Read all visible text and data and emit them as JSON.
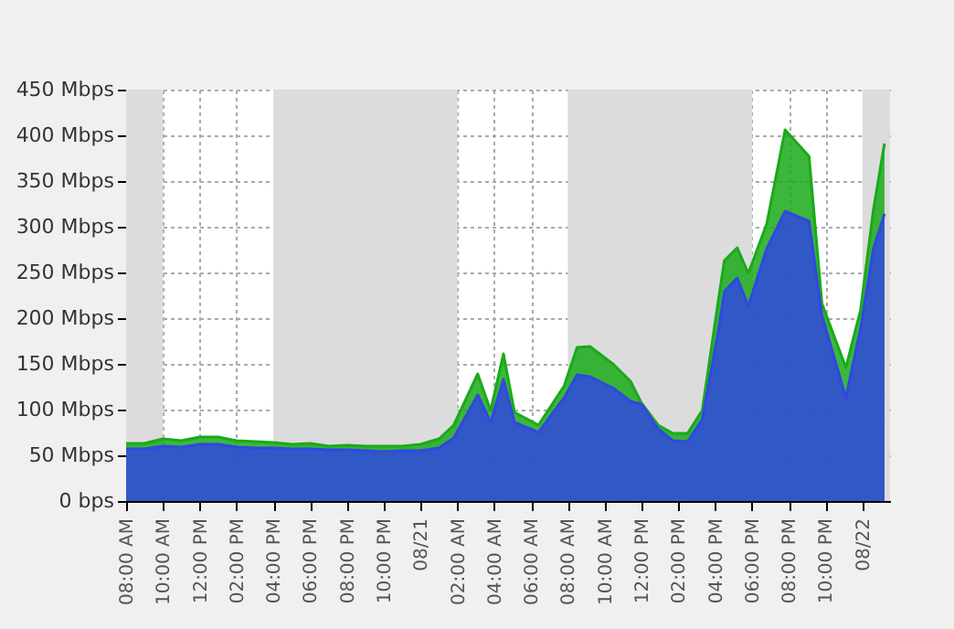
{
  "chart_data": {
    "type": "area",
    "x": [
      "--08-20T08:00",
      "--08-20T09:00",
      "--08-20T10:00",
      "--08-20T11:00",
      "--08-20T12:00",
      "--08-20T13:00",
      "--08-20T14:00",
      "--08-20T15:00",
      "--08-20T16:00",
      "--08-20T17:00",
      "--08-20T18:00",
      "--08-20T19:00",
      "--08-20T20:00",
      "--08-20T21:00",
      "--08-20T22:00",
      "--08-20T23:00",
      "--08-21T00:00",
      "--08-21T01:00",
      "--08-21T01:48",
      "--08-21T03:06",
      "--08-21T03:48",
      "--08-21T04:30",
      "--08-21T05:06",
      "--08-21T06:24",
      "--08-21T07:48",
      "--08-21T08:30",
      "--08-21T09:12",
      "--08-21T10:30",
      "--08-21T11:24",
      "--08-21T12:00",
      "--08-21T12:54",
      "--08-21T13:42",
      "--08-21T14:30",
      "--08-21T15:18",
      "--08-21T16:12",
      "--08-21T16:30",
      "--08-21T17:12",
      "--08-21T17:48",
      "--08-21T18:48",
      "--08-21T19:48",
      "--08-21T21:06",
      "--08-21T21:48",
      "--08-21T23:06",
      "--08-21T23:54",
      "--08-22T00:36",
      "--08-22T01:12"
    ],
    "series": [
      {
        "color": "#1aaa1a",
        "values": [
          63,
          63,
          68,
          66,
          70,
          70,
          66,
          65,
          64,
          62,
          63,
          60,
          61,
          60,
          60,
          60,
          62,
          68,
          83,
          139,
          99,
          161,
          97,
          83,
          126,
          168,
          169,
          149,
          131,
          107,
          83,
          74,
          74,
          99,
          223,
          263,
          277,
          249,
          303,
          406,
          377,
          216,
          146,
          209,
          319,
          391
        ]
      },
      {
        "color": "#3048e0",
        "values": [
          57,
          57,
          60,
          59,
          62,
          62,
          59,
          58,
          58,
          57,
          57,
          56,
          56,
          55,
          54,
          55,
          55,
          58,
          69,
          116,
          86,
          133,
          86,
          75,
          113,
          138,
          136,
          123,
          109,
          106,
          79,
          66,
          65,
          89,
          189,
          229,
          244,
          213,
          276,
          317,
          306,
          203,
          113,
          189,
          276,
          314
        ]
      }
    ],
    "xlim": [
      "--08-20T08:00",
      "--08-22T01:30"
    ],
    "xticks": [
      {
        "value": "--08-20T08:00",
        "label": "08:00 AM"
      },
      {
        "value": "--08-20T10:00",
        "label": "10:00 AM"
      },
      {
        "value": "--08-20T12:00",
        "label": "12:00 PM"
      },
      {
        "value": "--08-20T14:00",
        "label": "02:00 PM"
      },
      {
        "value": "--08-20T16:00",
        "label": "04:00 PM"
      },
      {
        "value": "--08-20T18:00",
        "label": "06:00 PM"
      },
      {
        "value": "--08-20T20:00",
        "label": "08:00 PM"
      },
      {
        "value": "--08-20T22:00",
        "label": "10:00 PM"
      },
      {
        "value": "--08-21T00:00",
        "label": "08/21"
      },
      {
        "value": "--08-21T02:00",
        "label": "02:00 AM"
      },
      {
        "value": "--08-21T04:00",
        "label": "04:00 AM"
      },
      {
        "value": "--08-21T06:00",
        "label": "06:00 AM"
      },
      {
        "value": "--08-21T08:00",
        "label": "08:00 AM"
      },
      {
        "value": "--08-21T10:00",
        "label": "10:00 AM"
      },
      {
        "value": "--08-21T12:00",
        "label": "12:00 PM"
      },
      {
        "value": "--08-21T14:00",
        "label": "02:00 PM"
      },
      {
        "value": "--08-21T16:00",
        "label": "04:00 PM"
      },
      {
        "value": "--08-21T18:00",
        "label": "06:00 PM"
      },
      {
        "value": "--08-21T20:00",
        "label": "08:00 PM"
      },
      {
        "value": "--08-21T22:00",
        "label": "10:00 PM"
      },
      {
        "value": "--08-22T00:00",
        "label": "08/22"
      }
    ],
    "ylim": [
      0,
      450
    ],
    "yticks": [
      {
        "value": 0,
        "label": "0 bps"
      },
      {
        "value": 50,
        "label": "50 Mbps"
      },
      {
        "value": 100,
        "label": "100 Mbps"
      },
      {
        "value": 150,
        "label": "150 Mbps"
      },
      {
        "value": 200,
        "label": "200 Mbps"
      },
      {
        "value": 250,
        "label": "250 Mbps"
      },
      {
        "value": 300,
        "label": "300 Mbps"
      },
      {
        "value": 350,
        "label": "350 Mbps"
      },
      {
        "value": 400,
        "label": "400 Mbps"
      },
      {
        "value": 450,
        "label": "450 Mbps"
      }
    ],
    "bands": [
      {
        "axis": "x",
        "from": "--08-20T08:00",
        "to": "--08-20T10:00",
        "color": "#dcdcdc"
      },
      {
        "axis": "x",
        "from": "--08-20T16:00",
        "to": "--08-21T02:00",
        "color": "#dcdcdc"
      },
      {
        "axis": "x",
        "from": "--08-21T08:00",
        "to": "--08-21T18:00",
        "color": "#dcdcdc"
      },
      {
        "axis": "x",
        "from": "--08-22T00:00",
        "to": "--08-22T01:30",
        "color": "#dcdcdc"
      }
    ],
    "grid": true
  }
}
